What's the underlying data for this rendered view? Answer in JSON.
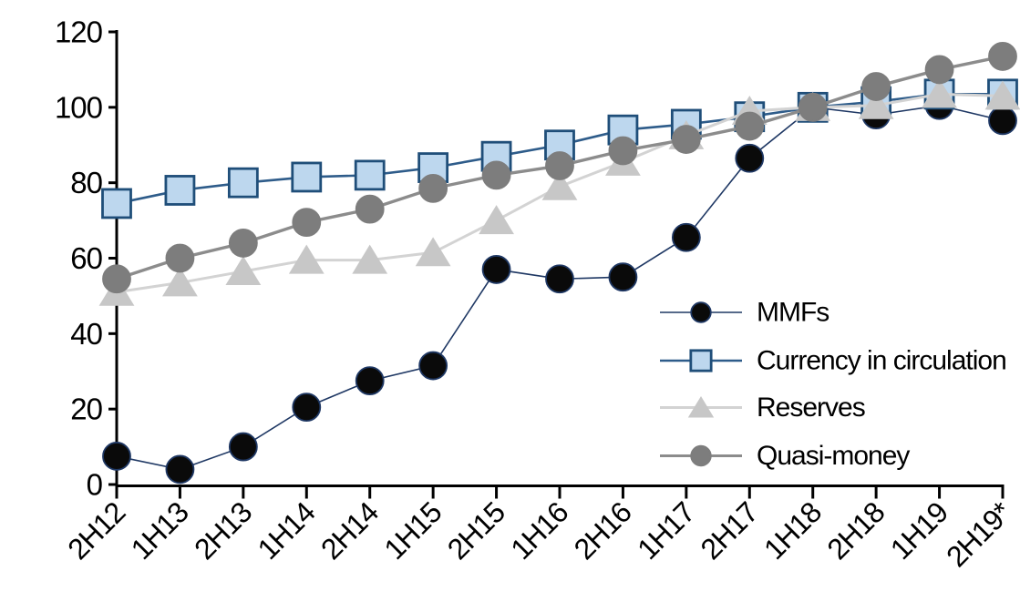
{
  "chart_data": {
    "type": "line",
    "title": "",
    "xlabel": "",
    "ylabel": "",
    "categories": [
      "2H12",
      "1H13",
      "2H13",
      "1H14",
      "2H14",
      "1H15",
      "2H15",
      "1H16",
      "2H16",
      "1H17",
      "2H17",
      "1H18",
      "2H18",
      "1H19",
      "2H19*"
    ],
    "series": [
      {
        "name": "MMFs",
        "marker": "circle",
        "marker_fill": "#0a0a0a",
        "marker_stroke": "#1f3864",
        "line_color": "#1f3864",
        "line_width": 1.6,
        "values": [
          7.5,
          4,
          10,
          20.5,
          27.5,
          31.5,
          57,
          54.5,
          55,
          65.5,
          86.5,
          100,
          98,
          100.5,
          96.5
        ]
      },
      {
        "name": "Currency in circulation",
        "marker": "square",
        "marker_fill": "#bdd7ee",
        "marker_stroke": "#1f4e79",
        "line_color": "#2e5c8a",
        "line_width": 2.6,
        "values": [
          74.5,
          78,
          80,
          81.5,
          82,
          84,
          87,
          90,
          94,
          95.5,
          97.5,
          100,
          101.5,
          103.5,
          103.5
        ]
      },
      {
        "name": "Reserves",
        "marker": "triangle",
        "marker_fill": "#c7c7c7",
        "marker_stroke": "#c7c7c7",
        "line_color": "#d3d3d3",
        "line_width": 3,
        "values": [
          51,
          53.5,
          56.5,
          59.5,
          59.5,
          61.5,
          70,
          79,
          85.5,
          92.5,
          99,
          100,
          100.5,
          103.5,
          103
        ]
      },
      {
        "name": "Quasi-money",
        "marker": "circle",
        "marker_fill": "#7d7d7d",
        "marker_stroke": "#7d7d7d",
        "line_color": "#8c8c8c",
        "line_width": 3.4,
        "values": [
          54.5,
          60,
          64,
          69.5,
          73,
          78.5,
          82,
          84.5,
          88.5,
          91.5,
          95,
          100,
          105.5,
          110,
          113.5
        ]
      }
    ],
    "ylim": [
      0,
      120
    ],
    "ytick_step": 20,
    "yticks": [
      "0",
      "20",
      "40",
      "60",
      "80",
      "100",
      "120"
    ],
    "grid": false,
    "legend_position": "inside-right",
    "axis_color": "#000000",
    "background_color": "#ffffff"
  }
}
